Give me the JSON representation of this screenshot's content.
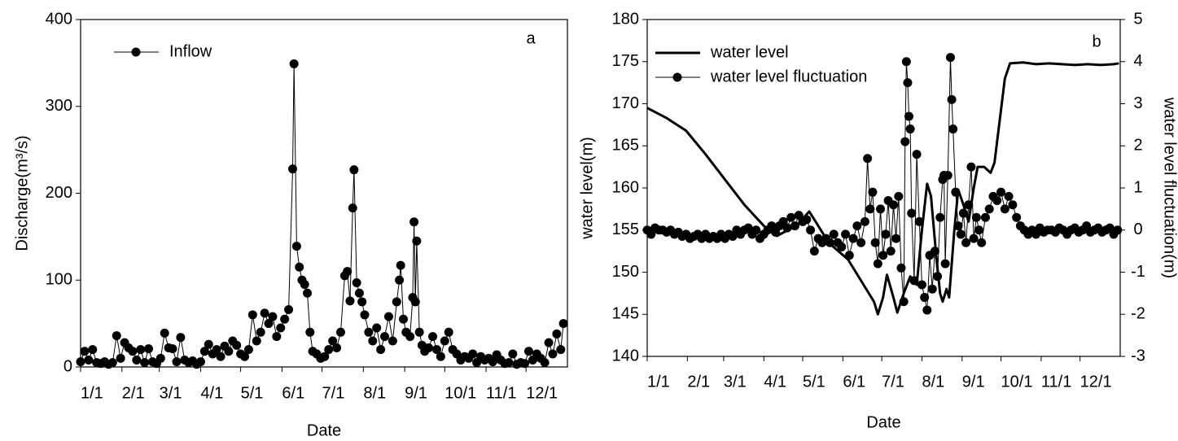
{
  "chart_data": [
    {
      "type": "line",
      "label": "a",
      "xlabel": "Date",
      "ylabel": "Discharge(m³/s)",
      "xlim": [
        0,
        365
      ],
      "xticks": [
        {
          "value": 0,
          "label": "1/1"
        },
        {
          "value": 31,
          "label": "2/1"
        },
        {
          "value": 59,
          "label": "3/1"
        },
        {
          "value": 90,
          "label": "4/1"
        },
        {
          "value": 120,
          "label": "5/1"
        },
        {
          "value": 151,
          "label": "6/1"
        },
        {
          "value": 181,
          "label": "7/1"
        },
        {
          "value": 212,
          "label": "8/1"
        },
        {
          "value": 243,
          "label": "9/1"
        },
        {
          "value": 273,
          "label": "10/1"
        },
        {
          "value": 304,
          "label": "11/1"
        },
        {
          "value": 334,
          "label": "12/1"
        }
      ],
      "ylim": [
        0,
        400
      ],
      "yticks": [
        0,
        100,
        200,
        300,
        400
      ],
      "legend": "upper left",
      "series": [
        {
          "name": "Inflow",
          "color": "#000000",
          "marker": "circle",
          "line_width": 1,
          "x": [
            0,
            3,
            6,
            9,
            12,
            15,
            18,
            21,
            24,
            27,
            30,
            33,
            36,
            39,
            42,
            45,
            48,
            51,
            54,
            57,
            60,
            63,
            66,
            69,
            72,
            75,
            78,
            81,
            84,
            87,
            90,
            93,
            96,
            99,
            102,
            105,
            108,
            111,
            114,
            117,
            120,
            123,
            126,
            129,
            132,
            135,
            138,
            141,
            144,
            147,
            150,
            153,
            156,
            159,
            160,
            162,
            164,
            166,
            168,
            170,
            172,
            174,
            177,
            180,
            183,
            186,
            189,
            192,
            195,
            198,
            200,
            202,
            204,
            205,
            207,
            209,
            211,
            213,
            216,
            219,
            222,
            225,
            228,
            231,
            234,
            237,
            239,
            240,
            242,
            244,
            247,
            249,
            250,
            251,
            252,
            254,
            256,
            258,
            261,
            264,
            267,
            270,
            273,
            276,
            279,
            282,
            285,
            288,
            291,
            294,
            297,
            300,
            303,
            306,
            309,
            312,
            315,
            318,
            321,
            324,
            327,
            330,
            333,
            336,
            339,
            342,
            345,
            348,
            351,
            354,
            357,
            360,
            362
          ],
          "values": [
            6,
            18,
            8,
            20,
            5,
            4,
            6,
            3,
            5,
            36,
            10,
            28,
            22,
            18,
            8,
            20,
            5,
            21,
            6,
            4,
            10,
            39,
            22,
            21,
            6,
            34,
            8,
            5,
            7,
            3,
            6,
            18,
            26,
            15,
            20,
            12,
            24,
            18,
            30,
            25,
            15,
            12,
            20,
            60,
            30,
            40,
            62,
            50,
            58,
            35,
            45,
            55,
            66,
            228,
            349,
            139,
            115,
            100,
            95,
            85,
            40,
            18,
            15,
            10,
            12,
            20,
            30,
            22,
            40,
            105,
            110,
            76,
            183,
            227,
            97,
            85,
            75,
            60,
            40,
            30,
            45,
            20,
            35,
            58,
            30,
            75,
            100,
            117,
            55,
            40,
            35,
            80,
            167,
            75,
            145,
            40,
            25,
            18,
            22,
            35,
            20,
            12,
            30,
            40,
            20,
            15,
            8,
            12,
            10,
            15,
            5,
            12,
            8,
            10,
            6,
            14,
            8,
            4,
            5,
            15,
            3,
            5,
            4,
            18,
            8,
            15,
            10,
            5,
            28,
            15,
            38,
            20,
            50
          ]
        }
      ]
    },
    {
      "type": "line",
      "label": "b",
      "xlabel": "Date",
      "ylabel": "water level(m)",
      "y2label": "water level fluctuation(m)",
      "xlim": [
        0,
        365
      ],
      "xticks": [
        {
          "value": 0,
          "label": "1/1"
        },
        {
          "value": 31,
          "label": "2/1"
        },
        {
          "value": 59,
          "label": "3/1"
        },
        {
          "value": 90,
          "label": "4/1"
        },
        {
          "value": 120,
          "label": "5/1"
        },
        {
          "value": 151,
          "label": "6/1"
        },
        {
          "value": 181,
          "label": "7/1"
        },
        {
          "value": 212,
          "label": "8/1"
        },
        {
          "value": 243,
          "label": "9/1"
        },
        {
          "value": 273,
          "label": "10/1"
        },
        {
          "value": 304,
          "label": "11/1"
        },
        {
          "value": 334,
          "label": "12/1"
        }
      ],
      "ylim": [
        140,
        180
      ],
      "yticks": [
        140,
        145,
        150,
        155,
        160,
        165,
        170,
        175,
        180
      ],
      "y2lim": [
        -3,
        5
      ],
      "y2ticks": [
        -3,
        -2,
        -1,
        0,
        1,
        2,
        3,
        4,
        5
      ],
      "legend": "upper left",
      "series": [
        {
          "name": "water level",
          "color": "#000000",
          "line_width": 3,
          "x": [
            0,
            15,
            30,
            45,
            60,
            75,
            90,
            100,
            115,
            125,
            130,
            140,
            155,
            165,
            175,
            178,
            182,
            185,
            190,
            193,
            198,
            203,
            208,
            212,
            216,
            219,
            223,
            226,
            228,
            231,
            233,
            237,
            240,
            244,
            248,
            252,
            255,
            260,
            265,
            268,
            272,
            276,
            280,
            290,
            300,
            310,
            320,
            330,
            340,
            350,
            360,
            364
          ],
          "values": [
            169.5,
            168.3,
            166.8,
            164,
            161,
            158,
            155.5,
            154.3,
            155.5,
            157.2,
            156,
            153.5,
            151.5,
            149,
            146.5,
            145,
            147,
            149.7,
            147,
            145.2,
            147.5,
            149.5,
            148.5,
            155,
            160.5,
            159,
            152,
            147.5,
            146.5,
            148,
            147,
            155,
            159.8,
            158,
            156,
            160,
            162.5,
            162.5,
            161.8,
            163,
            168,
            173,
            174.8,
            174.9,
            174.7,
            174.8,
            174.7,
            174.6,
            174.7,
            174.6,
            174.7,
            174.8
          ]
        },
        {
          "name": "water level fluctuation",
          "color": "#000000",
          "marker": "circle",
          "line_width": 1,
          "axis": "y2",
          "x": [
            0,
            3,
            6,
            9,
            12,
            15,
            18,
            21,
            24,
            27,
            30,
            33,
            36,
            39,
            42,
            45,
            48,
            51,
            54,
            57,
            60,
            63,
            66,
            69,
            72,
            75,
            78,
            81,
            84,
            87,
            90,
            93,
            96,
            99,
            102,
            105,
            108,
            111,
            114,
            117,
            120,
            123,
            126,
            129,
            132,
            135,
            138,
            141,
            144,
            147,
            150,
            153,
            156,
            159,
            162,
            165,
            168,
            170,
            172,
            174,
            176,
            178,
            180,
            182,
            184,
            186,
            188,
            190,
            192,
            194,
            196,
            198,
            199,
            200,
            201,
            202,
            203,
            204,
            206,
            208,
            210,
            212,
            214,
            216,
            218,
            220,
            222,
            224,
            226,
            228,
            229,
            230,
            232,
            234,
            235,
            236,
            238,
            240,
            242,
            244,
            246,
            248,
            250,
            252,
            254,
            256,
            258,
            261,
            264,
            267,
            270,
            273,
            276,
            279,
            282,
            285,
            288,
            291,
            294,
            297,
            300,
            303,
            306,
            309,
            312,
            315,
            318,
            321,
            324,
            327,
            330,
            333,
            336,
            339,
            342,
            345,
            348,
            351,
            354,
            357,
            360,
            363
          ],
          "values": [
            0,
            -0.1,
            0.05,
            0,
            0,
            -0.05,
            0,
            -0.1,
            -0.05,
            -0.15,
            -0.1,
            -0.2,
            -0.15,
            -0.1,
            -0.2,
            -0.1,
            -0.2,
            -0.15,
            -0.2,
            -0.1,
            -0.2,
            -0.1,
            -0.15,
            0,
            -0.1,
            0,
            0.05,
            -0.1,
            0,
            -0.2,
            -0.1,
            0,
            0.1,
            -0.05,
            0.1,
            0.2,
            0.05,
            0.3,
            0.1,
            0.35,
            0.2,
            0.25,
            0,
            -0.5,
            -0.2,
            -0.3,
            -0.2,
            -0.3,
            -0.1,
            -0.3,
            -0.4,
            -0.1,
            -0.6,
            -0.2,
            0.1,
            -0.3,
            0.2,
            1.7,
            0.5,
            0.9,
            -0.3,
            -0.8,
            0.5,
            -0.6,
            -0.1,
            0.7,
            -0.5,
            0.6,
            -0.2,
            0.8,
            -0.9,
            -1.7,
            2.1,
            4,
            3.5,
            2.7,
            2.4,
            0.4,
            -1.2,
            1.8,
            0.2,
            -1.3,
            -1.6,
            -1.9,
            -0.6,
            -1.4,
            -0.5,
            -1.1,
            0.3,
            1.2,
            1.3,
            -0.8,
            1.3,
            4.1,
            3.1,
            2.4,
            0.9,
            0.1,
            -0.1,
            0.4,
            -0.3,
            0.6,
            1.5,
            -0.2,
            0.3,
            0,
            -0.3,
            0.3,
            0.5,
            0.8,
            0.7,
            0.9,
            0.5,
            0.8,
            0.6,
            0.3,
            0.1,
            0,
            -0.1,
            0,
            -0.1,
            0.05,
            -0.05,
            0,
            0,
            -0.05,
            0.05,
            0,
            -0.1,
            0,
            0.05,
            -0.05,
            0,
            0.1,
            -0.05,
            0,
            0.05,
            -0.05,
            0,
            0.05,
            -0.1,
            0
          ]
        }
      ]
    }
  ]
}
